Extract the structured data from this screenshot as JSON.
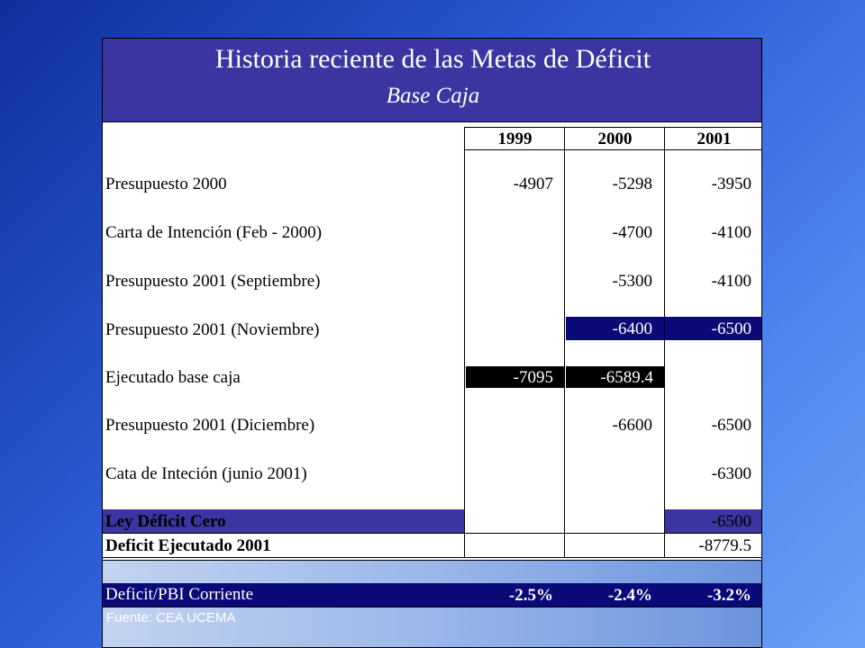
{
  "title": "Historia reciente de las Metas de Déficit",
  "subtitle": "Base Caja",
  "columns": [
    "1999",
    "2000",
    "2001"
  ],
  "rows": [
    {
      "label": "Presupuesto 2000",
      "values": [
        "-4907",
        "-5298",
        "-3950"
      ]
    },
    {
      "label": "Carta de Intención (Feb - 2000)",
      "values": [
        "",
        "-4700",
        "-4100"
      ]
    },
    {
      "label": "Presupuesto 2001 (Septiembre)",
      "values": [
        "",
        "-5300",
        "-4100"
      ]
    },
    {
      "label": "Presupuesto 2001 (Noviembre)",
      "values": [
        "",
        "-6400",
        "-6500"
      ]
    },
    {
      "label": "Ejecutado base caja",
      "values": [
        "-7095",
        "-6589.4",
        ""
      ]
    },
    {
      "label": "Presupuesto 2001 (Diciembre)",
      "values": [
        "",
        "-6600",
        "-6500"
      ]
    },
    {
      "label": "Cata de Inteción (junio 2001)",
      "values": [
        "",
        "",
        "-6300"
      ]
    },
    {
      "label": "Ley Déficit Cero",
      "values": [
        "",
        "",
        "-6500"
      ]
    },
    {
      "label": "Deficit Ejecutado 2001",
      "values": [
        "",
        "",
        "-8779.5"
      ]
    }
  ],
  "ratio_row": {
    "label": "Deficit/PBI Corriente",
    "values": [
      "-2.5%",
      "-2.4%",
      "-3.2%"
    ]
  },
  "source": "Fuente: CEA UCEMA",
  "colors": {
    "title_band": "#3a35a1",
    "highlight_navy": "#0a0a78",
    "highlight_black": "#000000"
  }
}
